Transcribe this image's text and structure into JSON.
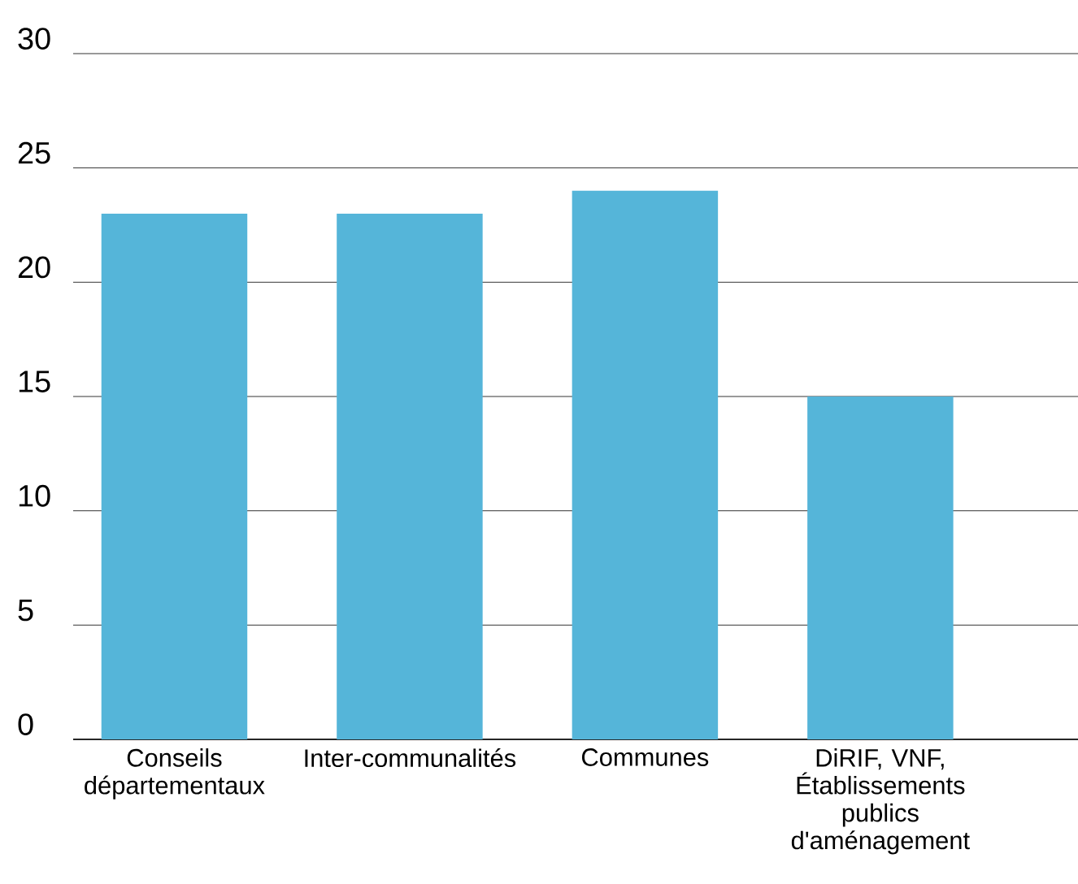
{
  "chart_data": {
    "type": "bar",
    "categories": [
      "Conseils départementaux",
      "Inter-communalités",
      "Communes",
      "DiRIF, VNF, Établissements publics d'aménagement"
    ],
    "values": [
      23,
      23,
      24,
      15
    ],
    "color": "#55b5d9",
    "ylim": [
      0,
      30
    ],
    "yticks": [
      0,
      5,
      10,
      15,
      20,
      25,
      30
    ],
    "grid": "y"
  }
}
